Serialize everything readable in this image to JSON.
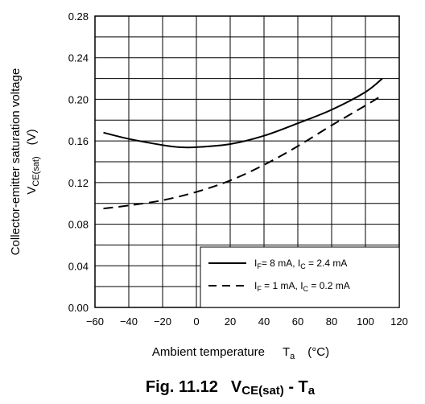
{
  "chart_data": {
    "type": "line",
    "xlim": [
      -60,
      120
    ],
    "ylim": [
      0,
      0.28
    ],
    "x_ticks": [
      -60,
      -40,
      -20,
      0,
      20,
      40,
      60,
      80,
      100,
      120
    ],
    "y_ticks": [
      "0.00",
      "0.04",
      "0.08",
      "0.12",
      "0.16",
      "0.20",
      "0.24",
      "0.28"
    ],
    "ylabel_line1": "Collector-emitter saturation voltage",
    "ylabel_line2_main": "V",
    "ylabel_line2_sub": "CE(sat)",
    "ylabel_line2_unit": "(V)",
    "xlabel_main": "Ambient temperature",
    "xlabel_symbol": "T",
    "xlabel_sub": "a",
    "xlabel_unit": "(°C)",
    "grid": true,
    "legend_position": "bottom-right",
    "series": [
      {
        "name": "IF= 8 mA, IC = 2.4 mA",
        "legend_parts": [
          "I",
          "F",
          "= 8 mA, I",
          "C",
          " = 2.4 mA"
        ],
        "style": "solid",
        "x": [
          -55,
          -40,
          -20,
          -10,
          0,
          20,
          40,
          60,
          80,
          100,
          110
        ],
        "y": [
          0.168,
          0.162,
          0.156,
          0.154,
          0.154,
          0.157,
          0.165,
          0.177,
          0.19,
          0.207,
          0.22
        ]
      },
      {
        "name": "IF = 1 mA, IC = 0.2 mA",
        "legend_parts": [
          "I",
          "F",
          " = 1 mA, I",
          "C",
          " = 0.2 mA"
        ],
        "style": "dashed",
        "x": [
          -55,
          -40,
          -20,
          0,
          20,
          40,
          60,
          80,
          100,
          110
        ],
        "y": [
          0.095,
          0.098,
          0.103,
          0.111,
          0.122,
          0.137,
          0.155,
          0.175,
          0.194,
          0.204
        ]
      }
    ]
  },
  "caption": {
    "prefix": "Fig. 11.12",
    "v": "V",
    "v_sub": "CE(sat)",
    "dash": " - T",
    "t_sub": "a"
  }
}
